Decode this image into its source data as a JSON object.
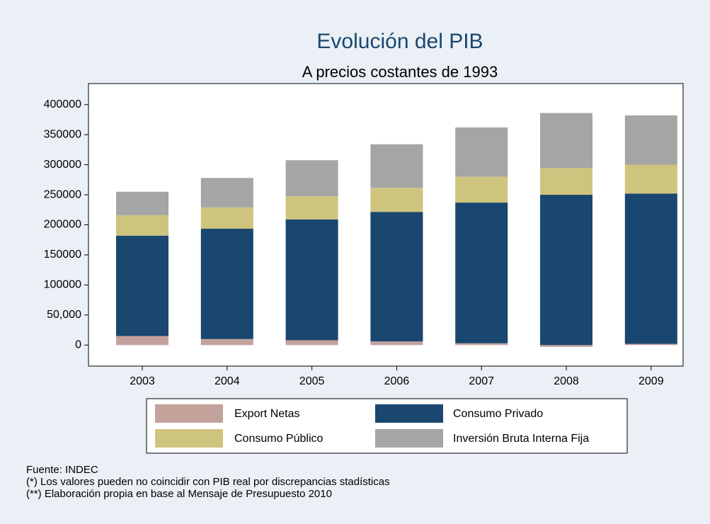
{
  "chart_data": {
    "type": "stacked_bar",
    "title": "Evolución del PIB",
    "subtitle": "A precios costantes de 1993",
    "categories": [
      "2003",
      "2004",
      "2005",
      "2006",
      "2007",
      "2008",
      "2009"
    ],
    "series": [
      {
        "name": "Export Netas",
        "color": "#c4a29c",
        "values": [
          15000,
          10000,
          8000,
          6000,
          3000,
          -3000,
          2000
        ]
      },
      {
        "name": "Consumo Privado",
        "color": "#1a476f",
        "values": [
          167000,
          183500,
          201000,
          215500,
          234000,
          250000,
          250000
        ]
      },
      {
        "name": "Consumo Público",
        "color": "#cfc47e",
        "values": [
          34000,
          35500,
          38500,
          40000,
          43000,
          44500,
          48000
        ]
      },
      {
        "name": "Inversión Bruta Interna Fija",
        "color": "#a5a5a5",
        "values": [
          39000,
          49000,
          60000,
          72500,
          82000,
          91500,
          82000
        ]
      }
    ],
    "ylim": [
      -35000,
      435000
    ],
    "yticks": [
      0,
      {
        "value": 50000,
        "label": "50,000"
      },
      100000,
      150000,
      200000,
      250000,
      300000,
      350000,
      400000
    ],
    "notes": [
      "Fuente: INDEC",
      "(*) Los valores pueden no coincidir con PIB real por discrepancias stadísticas",
      "(**) Elaboración propia en base al Mensaje de Presupuesto 2010"
    ]
  }
}
